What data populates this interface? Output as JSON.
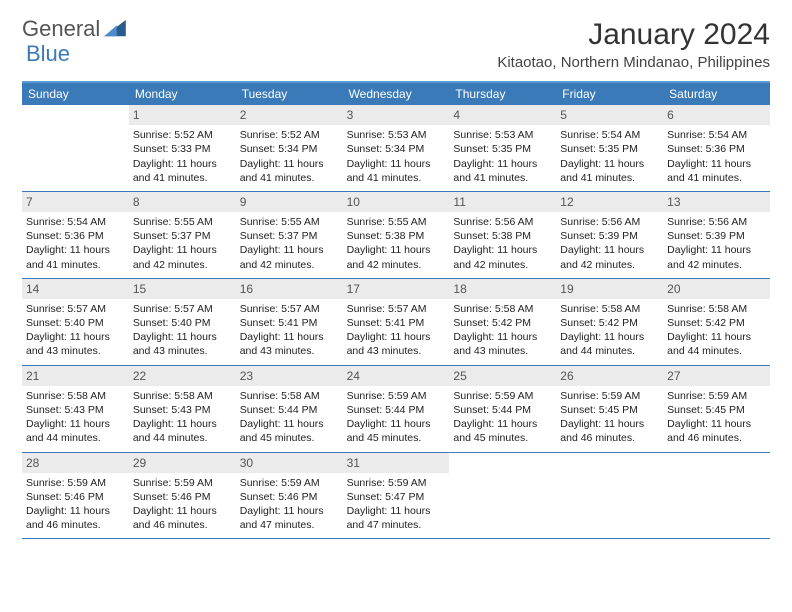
{
  "logo": {
    "word1": "General",
    "word2": "Blue"
  },
  "title": "January 2024",
  "location": "Kitaotao, Northern Mindanao, Philippines",
  "colors": {
    "header_bg": "#3a7ab8",
    "header_text": "#ffffff",
    "rule": "#3a7ab8",
    "date_bg": "#ebebeb",
    "body_text": "#222222"
  },
  "day_headers": [
    "Sunday",
    "Monday",
    "Tuesday",
    "Wednesday",
    "Thursday",
    "Friday",
    "Saturday"
  ],
  "weeks": [
    [
      null,
      {
        "d": "1",
        "sr": "5:52 AM",
        "ss": "5:33 PM",
        "dl": "11 hours and 41 minutes."
      },
      {
        "d": "2",
        "sr": "5:52 AM",
        "ss": "5:34 PM",
        "dl": "11 hours and 41 minutes."
      },
      {
        "d": "3",
        "sr": "5:53 AM",
        "ss": "5:34 PM",
        "dl": "11 hours and 41 minutes."
      },
      {
        "d": "4",
        "sr": "5:53 AM",
        "ss": "5:35 PM",
        "dl": "11 hours and 41 minutes."
      },
      {
        "d": "5",
        "sr": "5:54 AM",
        "ss": "5:35 PM",
        "dl": "11 hours and 41 minutes."
      },
      {
        "d": "6",
        "sr": "5:54 AM",
        "ss": "5:36 PM",
        "dl": "11 hours and 41 minutes."
      }
    ],
    [
      {
        "d": "7",
        "sr": "5:54 AM",
        "ss": "5:36 PM",
        "dl": "11 hours and 41 minutes."
      },
      {
        "d": "8",
        "sr": "5:55 AM",
        "ss": "5:37 PM",
        "dl": "11 hours and 42 minutes."
      },
      {
        "d": "9",
        "sr": "5:55 AM",
        "ss": "5:37 PM",
        "dl": "11 hours and 42 minutes."
      },
      {
        "d": "10",
        "sr": "5:55 AM",
        "ss": "5:38 PM",
        "dl": "11 hours and 42 minutes."
      },
      {
        "d": "11",
        "sr": "5:56 AM",
        "ss": "5:38 PM",
        "dl": "11 hours and 42 minutes."
      },
      {
        "d": "12",
        "sr": "5:56 AM",
        "ss": "5:39 PM",
        "dl": "11 hours and 42 minutes."
      },
      {
        "d": "13",
        "sr": "5:56 AM",
        "ss": "5:39 PM",
        "dl": "11 hours and 42 minutes."
      }
    ],
    [
      {
        "d": "14",
        "sr": "5:57 AM",
        "ss": "5:40 PM",
        "dl": "11 hours and 43 minutes."
      },
      {
        "d": "15",
        "sr": "5:57 AM",
        "ss": "5:40 PM",
        "dl": "11 hours and 43 minutes."
      },
      {
        "d": "16",
        "sr": "5:57 AM",
        "ss": "5:41 PM",
        "dl": "11 hours and 43 minutes."
      },
      {
        "d": "17",
        "sr": "5:57 AM",
        "ss": "5:41 PM",
        "dl": "11 hours and 43 minutes."
      },
      {
        "d": "18",
        "sr": "5:58 AM",
        "ss": "5:42 PM",
        "dl": "11 hours and 43 minutes."
      },
      {
        "d": "19",
        "sr": "5:58 AM",
        "ss": "5:42 PM",
        "dl": "11 hours and 44 minutes."
      },
      {
        "d": "20",
        "sr": "5:58 AM",
        "ss": "5:42 PM",
        "dl": "11 hours and 44 minutes."
      }
    ],
    [
      {
        "d": "21",
        "sr": "5:58 AM",
        "ss": "5:43 PM",
        "dl": "11 hours and 44 minutes."
      },
      {
        "d": "22",
        "sr": "5:58 AM",
        "ss": "5:43 PM",
        "dl": "11 hours and 44 minutes."
      },
      {
        "d": "23",
        "sr": "5:58 AM",
        "ss": "5:44 PM",
        "dl": "11 hours and 45 minutes."
      },
      {
        "d": "24",
        "sr": "5:59 AM",
        "ss": "5:44 PM",
        "dl": "11 hours and 45 minutes."
      },
      {
        "d": "25",
        "sr": "5:59 AM",
        "ss": "5:44 PM",
        "dl": "11 hours and 45 minutes."
      },
      {
        "d": "26",
        "sr": "5:59 AM",
        "ss": "5:45 PM",
        "dl": "11 hours and 46 minutes."
      },
      {
        "d": "27",
        "sr": "5:59 AM",
        "ss": "5:45 PM",
        "dl": "11 hours and 46 minutes."
      }
    ],
    [
      {
        "d": "28",
        "sr": "5:59 AM",
        "ss": "5:46 PM",
        "dl": "11 hours and 46 minutes."
      },
      {
        "d": "29",
        "sr": "5:59 AM",
        "ss": "5:46 PM",
        "dl": "11 hours and 46 minutes."
      },
      {
        "d": "30",
        "sr": "5:59 AM",
        "ss": "5:46 PM",
        "dl": "11 hours and 47 minutes."
      },
      {
        "d": "31",
        "sr": "5:59 AM",
        "ss": "5:47 PM",
        "dl": "11 hours and 47 minutes."
      },
      null,
      null,
      null
    ]
  ],
  "labels": {
    "sunrise": "Sunrise:",
    "sunset": "Sunset:",
    "daylight": "Daylight:"
  }
}
